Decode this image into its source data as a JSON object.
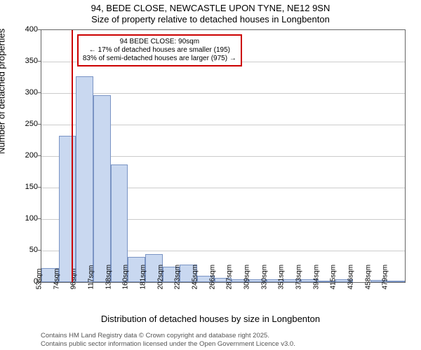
{
  "chart": {
    "type": "histogram",
    "title_main": "94, BEDE CLOSE, NEWCASTLE UPON TYNE, NE12 9SN",
    "title_sub": "Size of property relative to detached houses in Longbenton",
    "ylabel": "Number of detached properties",
    "xlabel": "Distribution of detached houses by size in Longbenton",
    "title_fontsize": 13,
    "label_fontsize": 13,
    "tick_fontsize": 11,
    "xtick_fontsize": 10,
    "background_color": "#ffffff",
    "grid_color": "#cccccc",
    "bar_fill": "#c9d8f0",
    "bar_stroke": "#7a94c4",
    "ref_line_color": "#cc0000",
    "ylim": [
      0,
      400
    ],
    "ytick_step": 50,
    "yticks": [
      0,
      50,
      100,
      150,
      200,
      250,
      300,
      350,
      400
    ],
    "x_bin_start": 53,
    "x_bin_width": 21.3,
    "xtick_labels": [
      "53sqm",
      "74sqm",
      "96sqm",
      "117sqm",
      "138sqm",
      "160sqm",
      "181sqm",
      "202sqm",
      "223sqm",
      "245sqm",
      "266sqm",
      "287sqm",
      "309sqm",
      "330sqm",
      "351sqm",
      "373sqm",
      "394sqm",
      "415sqm",
      "436sqm",
      "458sqm",
      "479sqm"
    ],
    "bar_values": [
      22,
      232,
      327,
      297,
      187,
      40,
      45,
      25,
      28,
      10,
      7,
      5,
      5,
      4,
      4,
      4,
      2,
      4,
      0,
      3,
      2
    ],
    "ref_value_x": 90,
    "annotation": {
      "title": "94 BEDE CLOSE: 90sqm",
      "line1": "← 17% of detached houses are smaller (195)",
      "line2": "83% of semi-detached houses are larger (975) →",
      "border_color": "#cc0000",
      "fontsize": 10
    },
    "footer_line1": "Contains HM Land Registry data © Crown copyright and database right 2025.",
    "footer_line2": "Contains public sector information licensed under the Open Government Licence v3.0."
  }
}
